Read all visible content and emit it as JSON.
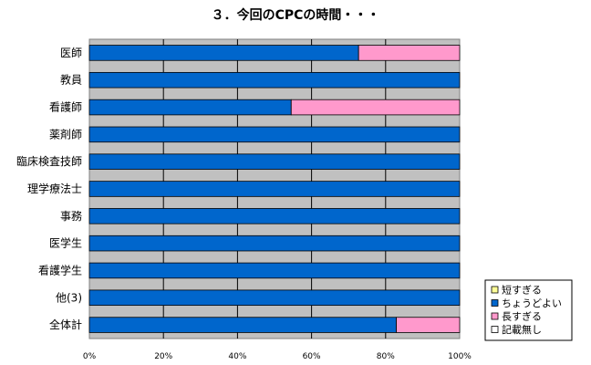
{
  "chart_data": {
    "type": "bar",
    "orientation": "horizontal",
    "stacked": "percent",
    "title": "３．今回のCPCの時間・・・",
    "categories": [
      "医師",
      "教員",
      "看護師",
      "薬剤師",
      "臨床検査技師",
      "理学療法士",
      "事務",
      "医学生",
      "看護学生",
      "他(3)",
      "全体計"
    ],
    "series": [
      {
        "name": "短すぎる",
        "color": "#ffff99",
        "values": [
          0,
          0,
          0,
          0,
          0,
          0,
          0,
          0,
          0,
          0,
          0
        ]
      },
      {
        "name": "ちょうどよい",
        "color": "#0066cc",
        "values": [
          72.7,
          100,
          54.5,
          100,
          100,
          100,
          100,
          100,
          100,
          100,
          82.9
        ]
      },
      {
        "name": "長すぎる",
        "color": "#ff99cc",
        "values": [
          27.3,
          0,
          45.5,
          0,
          0,
          0,
          0,
          0,
          0,
          0,
          17.1
        ]
      },
      {
        "name": "記載無し",
        "color": "#ffffff",
        "values": [
          0,
          0,
          0,
          0,
          0,
          0,
          0,
          0,
          0,
          0,
          0
        ]
      }
    ],
    "xlim": [
      0,
      100
    ],
    "x_ticks": [
      "0%",
      "20%",
      "40%",
      "60%",
      "80%",
      "100%"
    ],
    "grid": true,
    "plot_background": "#c0c0c0",
    "legend_position": "bottom-right"
  }
}
